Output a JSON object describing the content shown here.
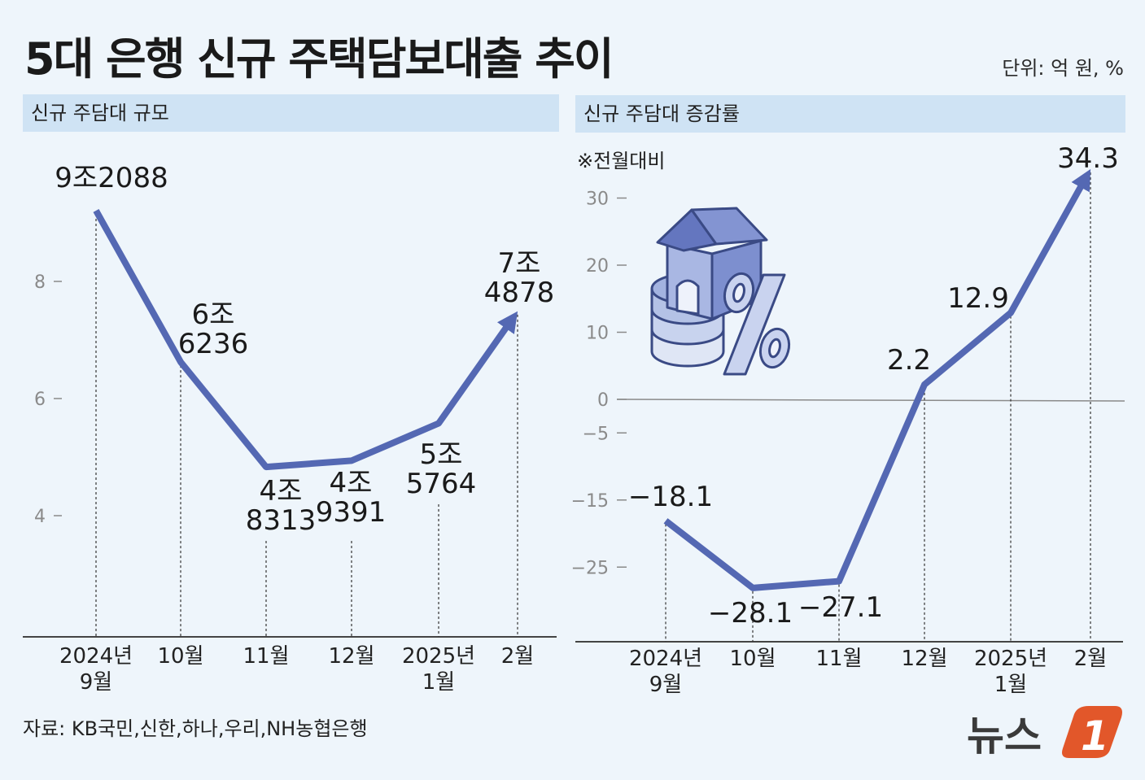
{
  "title": "5대 은행 신규 주택담보대출 추이",
  "unit": "단위: 억 원, %",
  "source": "자료: KB국민,신한,하나,우리,NH농협은행",
  "logo": {
    "text": "뉴스",
    "mark": "1"
  },
  "colors": {
    "line": "#5468b3",
    "header_bg": "#cfe3f4",
    "background": "#eef5fb",
    "logo_accent": "#e2572a"
  },
  "icon": "house-coins-percent-icon",
  "chart_data": [
    {
      "type": "line",
      "panel_title": "신규 주담대 규모",
      "x_labels": [
        [
          "2024년",
          "9월"
        ],
        [
          "10월"
        ],
        [
          "11월"
        ],
        [
          "12월"
        ],
        [
          "2025년",
          "1월"
        ],
        [
          "2월"
        ]
      ],
      "values": [
        92088,
        66236,
        48313,
        49391,
        55764,
        74878
      ],
      "value_labels": [
        [
          "9조2088"
        ],
        [
          "6조",
          "6236"
        ],
        [
          "4조",
          "8313"
        ],
        [
          "4조",
          "9391"
        ],
        [
          "5조",
          "5764"
        ],
        [
          "7조",
          "4878"
        ]
      ],
      "y_ticks": [
        "8",
        "6",
        "4"
      ],
      "y_tick_values": [
        80000,
        60000,
        40000
      ],
      "ylim": [
        28000,
        100000
      ]
    },
    {
      "type": "line",
      "panel_title": "신규 주담대 증감률",
      "note": "※전월대비",
      "x_labels": [
        [
          "2024년",
          "9월"
        ],
        [
          "10월"
        ],
        [
          "11월"
        ],
        [
          "12월"
        ],
        [
          "2025년",
          "1월"
        ],
        [
          "2월"
        ]
      ],
      "values": [
        -18.1,
        -28.1,
        -27.1,
        2.2,
        12.9,
        34.3
      ],
      "value_labels": [
        "−18.1",
        "−28.1",
        "−27.1",
        "2.2",
        "12.9",
        "34.3"
      ],
      "y_ticks": [
        "30",
        "20",
        "10",
        "0",
        "−5",
        "−15",
        "−25"
      ],
      "y_tick_values": [
        30,
        20,
        10,
        0,
        -5,
        -15,
        -25
      ]
    }
  ]
}
